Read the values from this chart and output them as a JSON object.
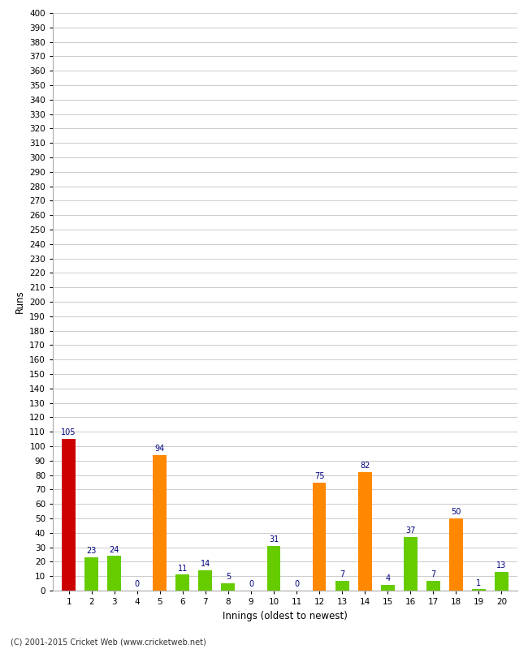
{
  "innings": [
    1,
    2,
    3,
    4,
    5,
    6,
    7,
    8,
    9,
    10,
    11,
    12,
    13,
    14,
    15,
    16,
    17,
    18,
    19,
    20
  ],
  "values": [
    105,
    23,
    24,
    0,
    94,
    11,
    14,
    5,
    0,
    31,
    0,
    75,
    7,
    82,
    4,
    37,
    7,
    50,
    1,
    13
  ],
  "colors": [
    "#cc0000",
    "#66cc00",
    "#66cc00",
    "#66cc00",
    "#ff8800",
    "#66cc00",
    "#66cc00",
    "#66cc00",
    "#66cc00",
    "#66cc00",
    "#66cc00",
    "#ff8800",
    "#66cc00",
    "#ff8800",
    "#66cc00",
    "#66cc00",
    "#66cc00",
    "#ff8800",
    "#66cc00",
    "#66cc00"
  ],
  "xlabel": "Innings (oldest to newest)",
  "ylabel": "Runs",
  "ylim": [
    0,
    400
  ],
  "yticks": [
    0,
    10,
    20,
    30,
    40,
    50,
    60,
    70,
    80,
    90,
    100,
    110,
    120,
    130,
    140,
    150,
    160,
    170,
    180,
    190,
    200,
    210,
    220,
    230,
    240,
    250,
    260,
    270,
    280,
    290,
    300,
    310,
    320,
    330,
    340,
    350,
    360,
    370,
    380,
    390,
    400
  ],
  "label_color": "#000080",
  "background_color": "#ffffff",
  "grid_color": "#cccccc",
  "footer": "(C) 2001-2015 Cricket Web (www.cricketweb.net)",
  "bar_width": 0.6
}
